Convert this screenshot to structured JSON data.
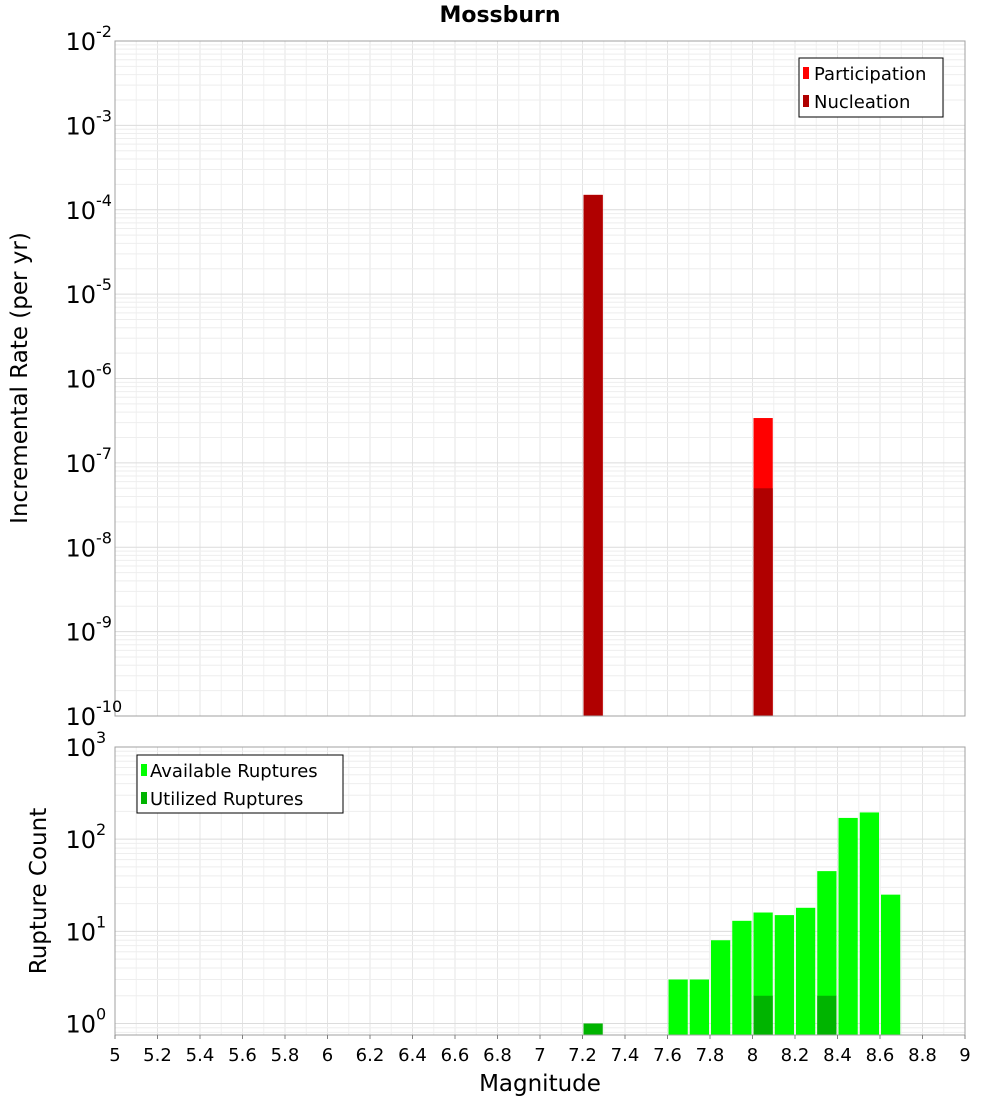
{
  "chart_data": [
    {
      "type": "bar",
      "title": "Mossburn",
      "ylabel": "Incremental Rate (per yr)",
      "xlabel": "",
      "yscale": "log",
      "ylim": [
        1e-10,
        0.01
      ],
      "xlim": [
        5,
        9
      ],
      "y_tick_exponents": [
        -10,
        -9,
        -8,
        -7,
        -6,
        -5,
        -4,
        -3,
        -2
      ],
      "bar_width": 0.1,
      "grid": true,
      "legend_position": "top-right",
      "series": [
        {
          "name": "Participation",
          "color": "#ff0000",
          "x": [
            7.25,
            8.05
          ],
          "values": [
            0.00015,
            3.4e-07
          ]
        },
        {
          "name": "Nucleation",
          "color": "#b00000",
          "x": [
            7.25,
            8.05
          ],
          "values": [
            0.00015,
            5e-08
          ]
        }
      ]
    },
    {
      "type": "bar",
      "title": "",
      "ylabel": "Rupture Count",
      "xlabel": "Magnitude",
      "yscale": "log",
      "ylim": [
        0.75,
        1000
      ],
      "xlim": [
        5,
        9
      ],
      "y_tick_exponents": [
        0,
        1,
        2,
        3
      ],
      "x_ticks": [
        "5",
        "5.2",
        "5.4",
        "5.6",
        "5.8",
        "6",
        "6.2",
        "6.4",
        "6.6",
        "6.8",
        "7",
        "7.2",
        "7.4",
        "7.6",
        "7.8",
        "8",
        "8.2",
        "8.4",
        "8.6",
        "8.8",
        "9"
      ],
      "bar_width": 0.1,
      "grid": true,
      "legend_position": "top-left",
      "series": [
        {
          "name": "Available Ruptures",
          "color": "#00ff00",
          "x": [
            7.65,
            7.75,
            7.85,
            7.95,
            8.05,
            8.15,
            8.25,
            8.35,
            8.45,
            8.55,
            8.65
          ],
          "values": [
            3,
            3,
            8,
            13,
            16,
            15,
            18,
            45,
            170,
            195,
            25
          ]
        },
        {
          "name": "Utilized Ruptures",
          "color": "#00b400",
          "x": [
            7.25,
            8.05,
            8.35
          ],
          "values": [
            1,
            2,
            2
          ]
        }
      ]
    }
  ]
}
